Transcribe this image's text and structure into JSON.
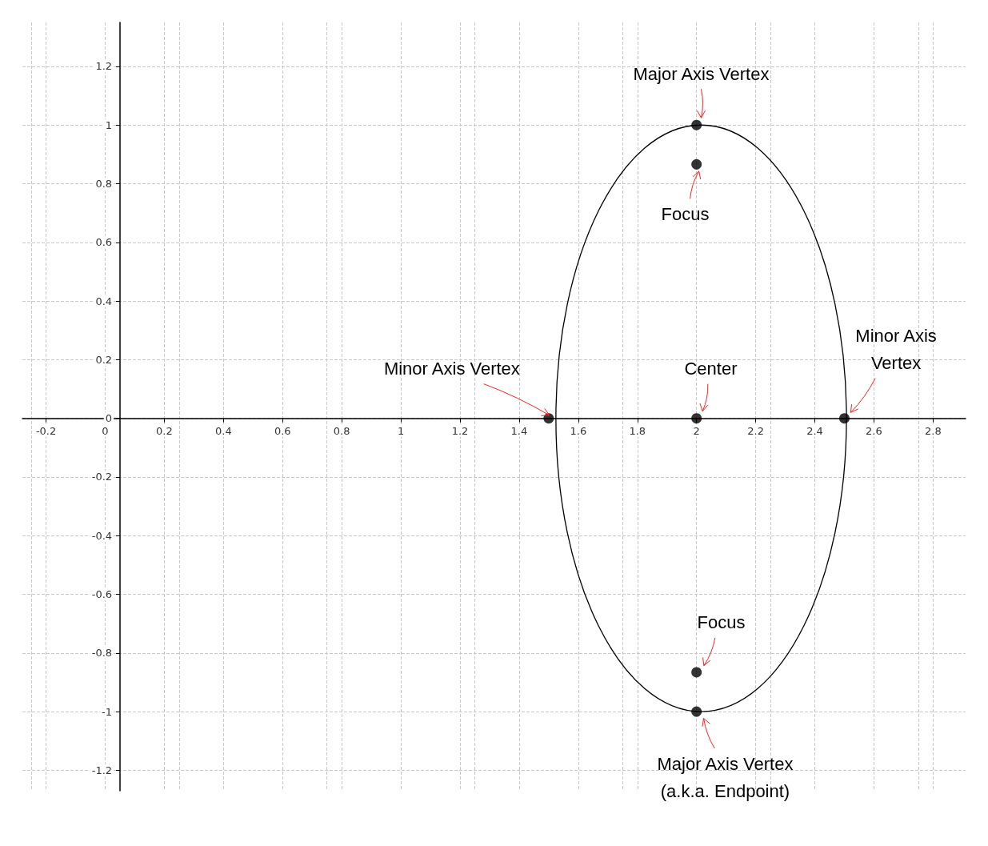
{
  "chart_data": {
    "type": "scatter",
    "xlim": [
      -0.28,
      2.91
    ],
    "ylim": [
      -1.27,
      1.35
    ],
    "xticks": [
      -0.2,
      0,
      0.2,
      0.4,
      0.6,
      0.8,
      1,
      1.2,
      1.4,
      1.6,
      1.8,
      2,
      2.2,
      2.4,
      2.6,
      2.8
    ],
    "yticks": [
      -1.2,
      -1,
      -0.8,
      -0.6,
      -0.4,
      -0.2,
      0,
      0.2,
      0.4,
      0.6,
      0.8,
      1,
      1.2
    ],
    "grid": true,
    "marker": "circle",
    "series": [
      {
        "type": "scatter",
        "color": "#000000",
        "x": [
          2,
          2,
          2,
          1.5,
          2.5,
          2,
          2
        ],
        "values": [
          1,
          0.866,
          0,
          0,
          0,
          -0.866,
          -1
        ]
      }
    ],
    "annotations": [
      {
        "text": "Major Axis Vertex",
        "x": 2,
        "y": 1
      },
      {
        "text": "Focus",
        "x": 2,
        "y": 0.866
      },
      {
        "text": "Center",
        "x": 2,
        "y": 0
      },
      {
        "text": "Minor Axis Vertex",
        "x": 1.5,
        "y": 0
      },
      {
        "text": "Minor Axis\nVertex",
        "x": 2.5,
        "y": 0
      },
      {
        "text": "Focus",
        "x": 2,
        "y": -0.866
      },
      {
        "text": "Major Axis Vertex\n(a.k.a. Endpoint)",
        "x": 2,
        "y": -1
      }
    ]
  }
}
